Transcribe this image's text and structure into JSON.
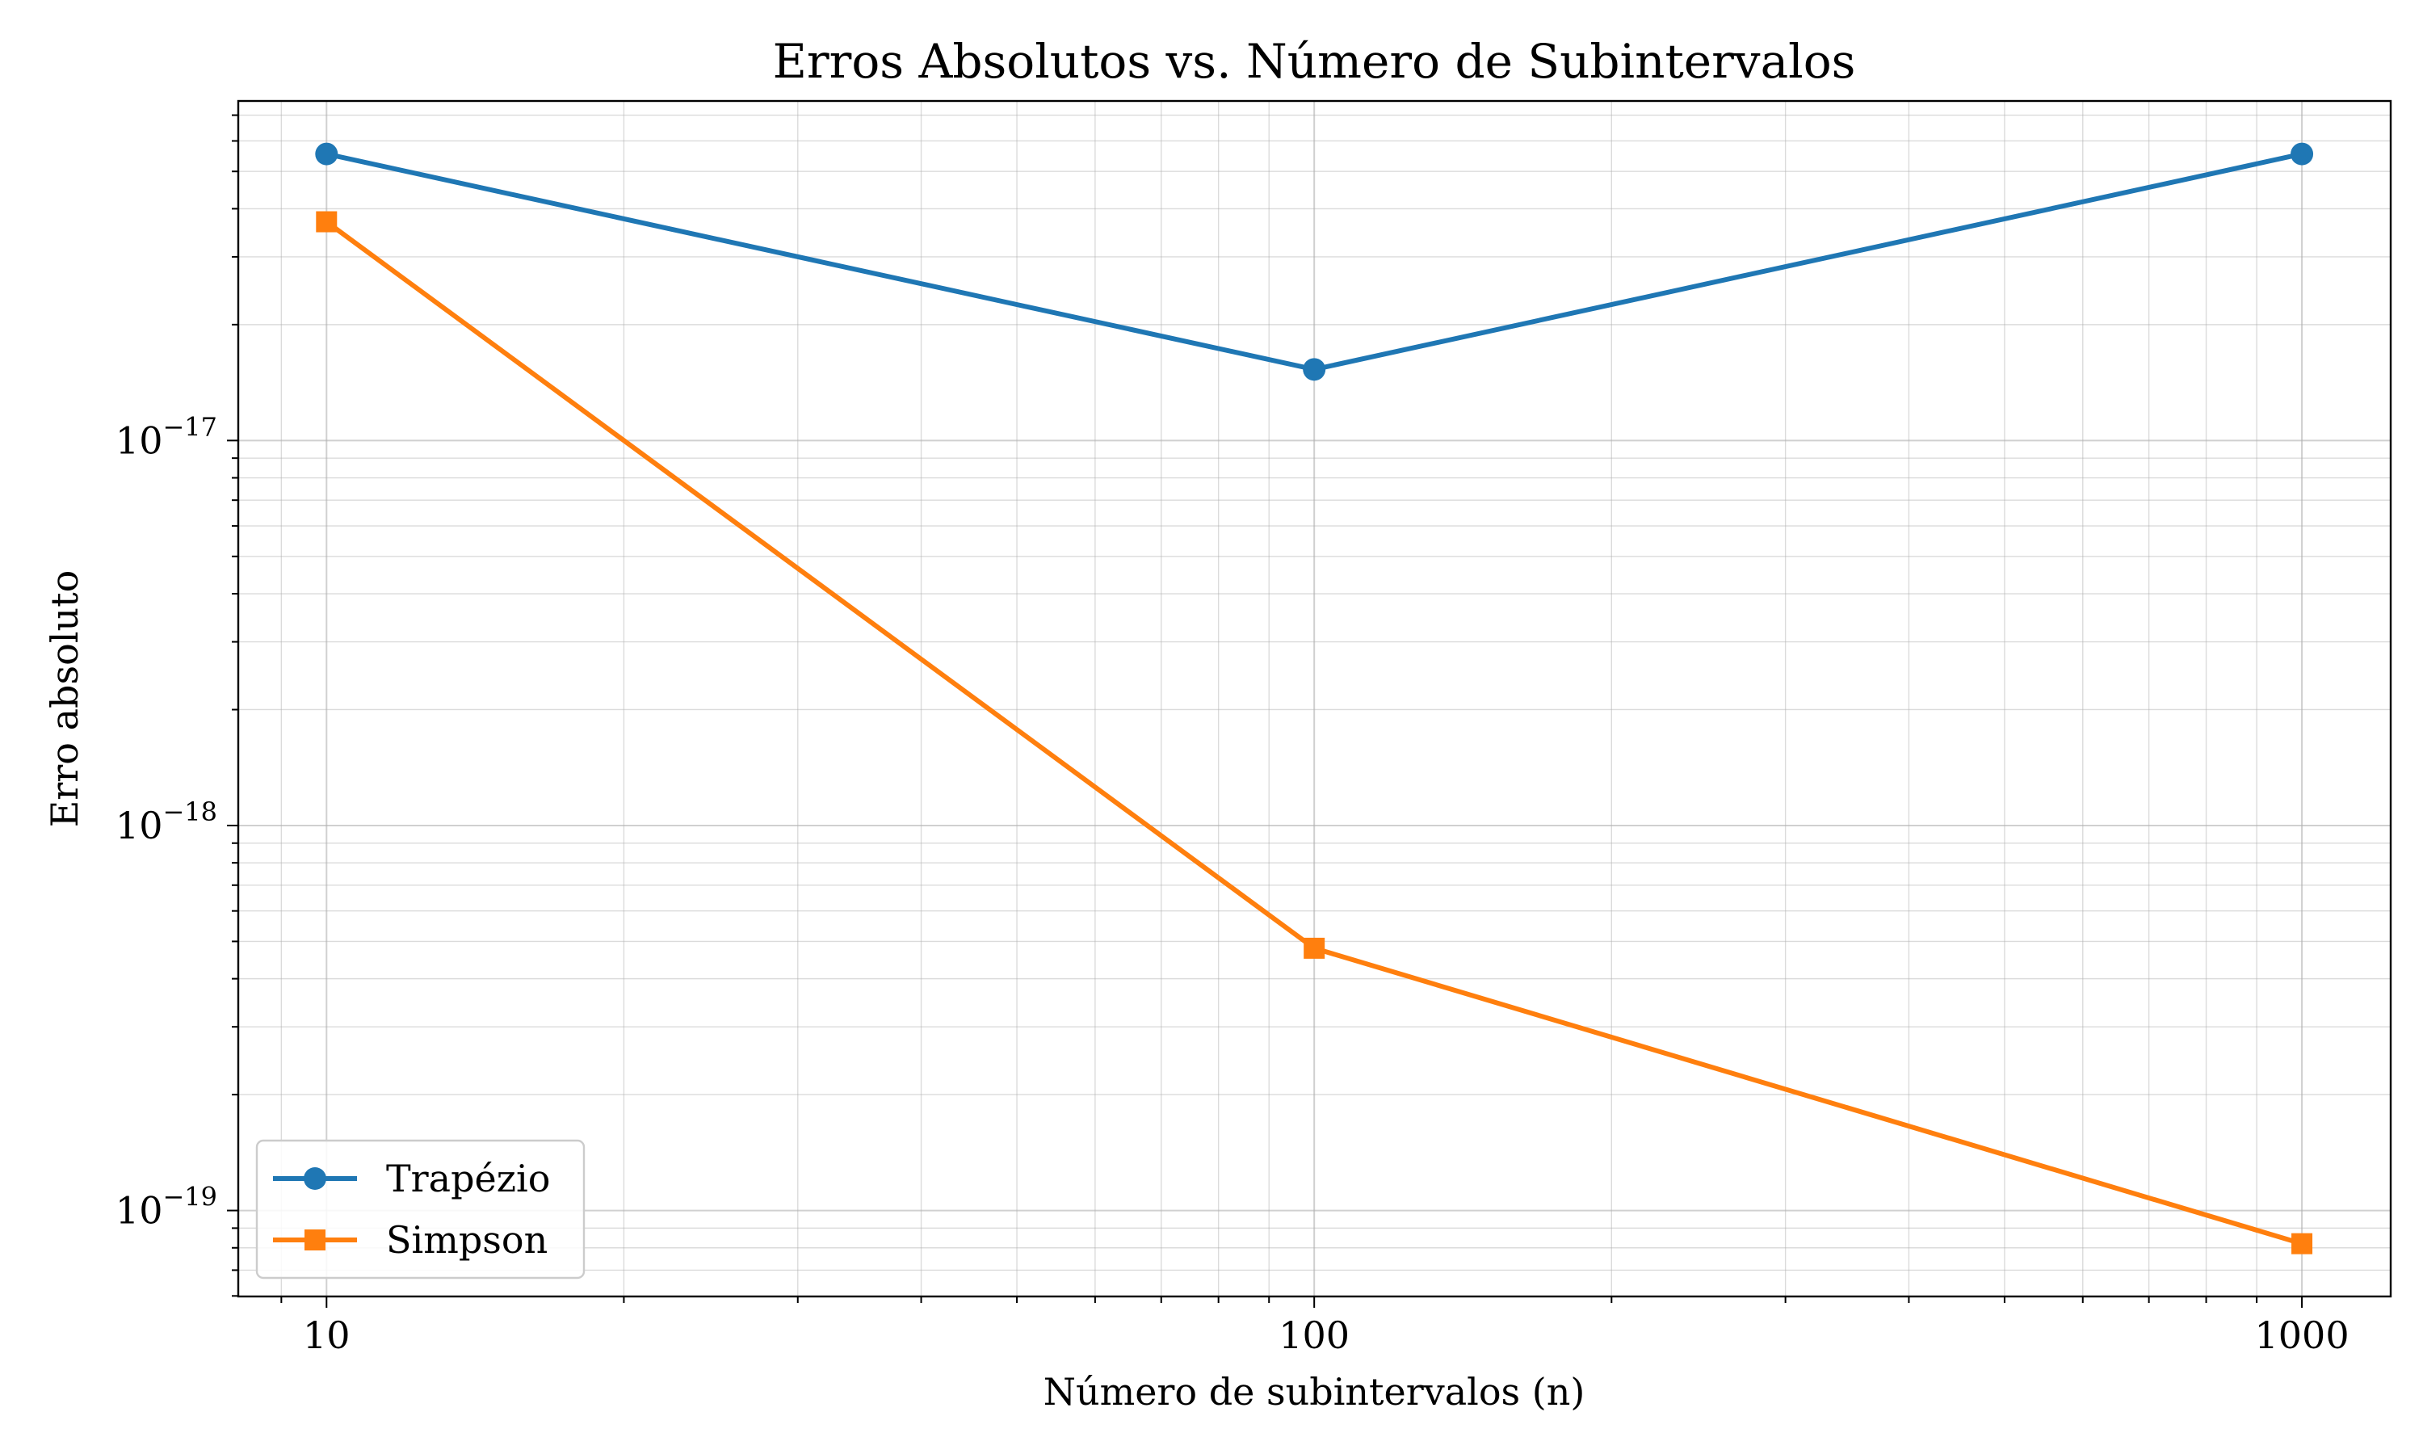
{
  "chart_data": {
    "type": "line",
    "title": "Erros Absolutos vs. Número de Subintervalos",
    "xlabel": "Número de subintervalos (n)",
    "ylabel": "Erro absoluto",
    "x_scale": "log",
    "y_scale": "log",
    "x": [
      10,
      100,
      1000
    ],
    "xlim": [
      8.14,
      1230
    ],
    "ylim": [
      5.98e-20,
      7.62e-17
    ],
    "x_ticks": [
      {
        "value": 10,
        "label": "10"
      },
      {
        "value": 100,
        "label": "100"
      },
      {
        "value": 1000,
        "label": "1000"
      }
    ],
    "y_ticks": [
      {
        "value": 1e-19,
        "base": "10",
        "exp": "−19"
      },
      {
        "value": 1e-18,
        "base": "10",
        "exp": "−18"
      },
      {
        "value": 1e-17,
        "base": "10",
        "exp": "−17"
      }
    ],
    "grid": true,
    "grid_minor": true,
    "legend_position": "lower left",
    "series": [
      {
        "name": "Trapézio",
        "values": [
          5.55e-17,
          1.53e-17,
          5.55e-17
        ],
        "color": "#1f77b4",
        "marker": "circle"
      },
      {
        "name": "Simpson",
        "values": [
          3.7e-17,
          4.8e-19,
          8.2e-20
        ],
        "color": "#ff7f0e",
        "marker": "square"
      }
    ]
  }
}
